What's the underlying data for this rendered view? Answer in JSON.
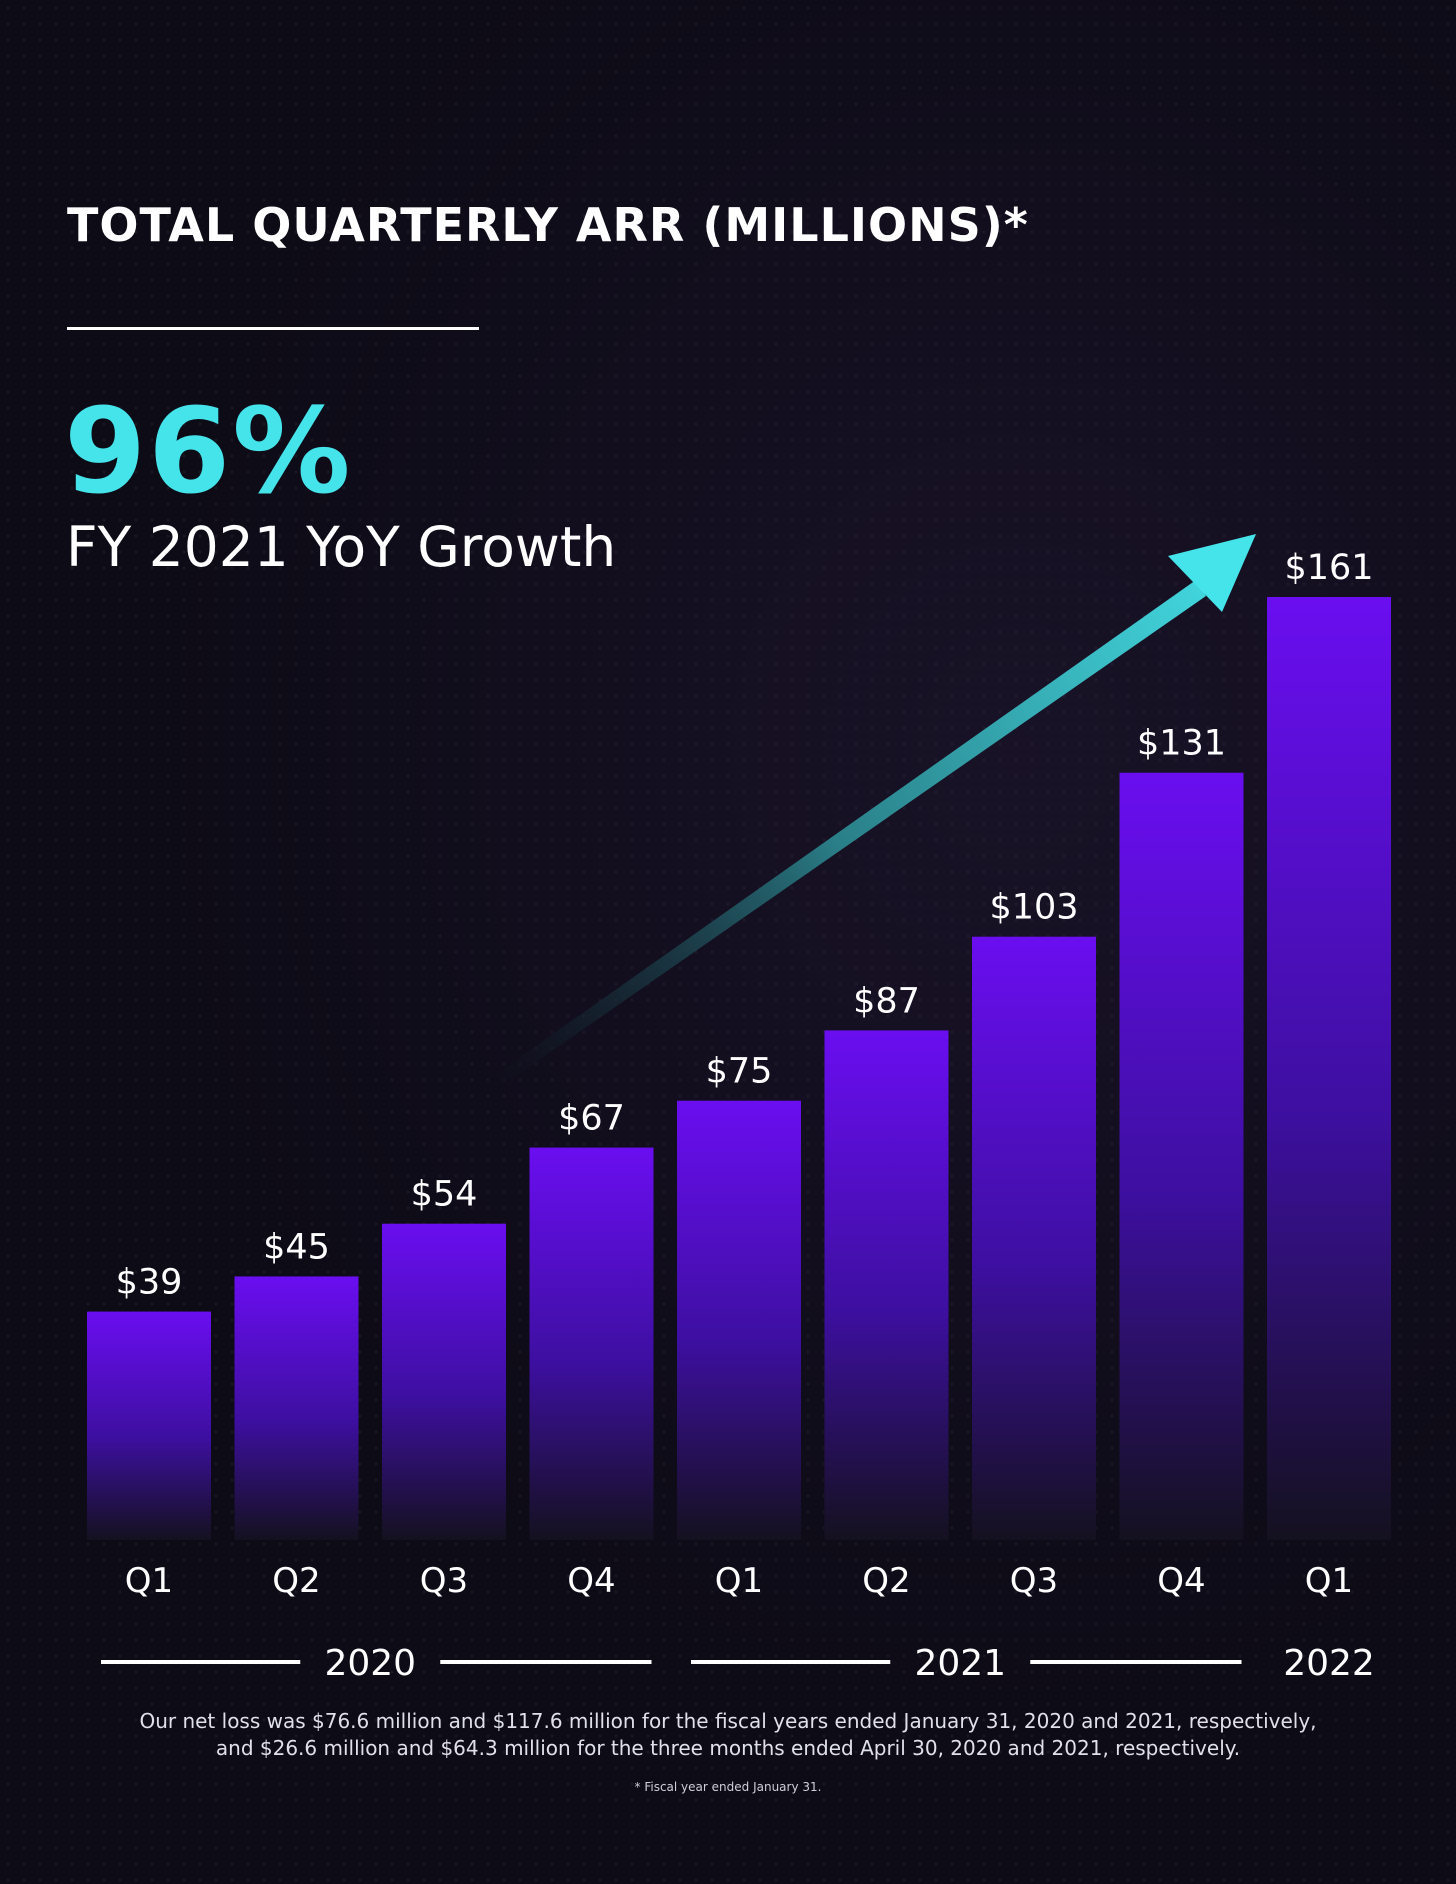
{
  "header": {
    "title": "TOTAL QUARTERLY ARR (MILLIONS)*"
  },
  "kpi": {
    "value": "96%",
    "label": "FY 2021 YoY Growth"
  },
  "colors": {
    "background": "#0d0b16",
    "bar_top": "#6a0ef0",
    "accent": "#45e3ea",
    "text": "#ffffff"
  },
  "chart_data": {
    "type": "bar",
    "title": "TOTAL QUARTERLY ARR (MILLIONS)*",
    "categories": [
      "Q1",
      "Q2",
      "Q3",
      "Q4",
      "Q1",
      "Q2",
      "Q3",
      "Q4",
      "Q1"
    ],
    "values": [
      39,
      45,
      54,
      67,
      75,
      87,
      103,
      131,
      161
    ],
    "value_labels": [
      "$39",
      "$45",
      "$54",
      "$67",
      "$75",
      "$87",
      "$103",
      "$131",
      "$161"
    ],
    "year_groups": [
      {
        "label": "2020",
        "start": 0,
        "end": 3
      },
      {
        "label": "2021",
        "start": 4,
        "end": 7
      },
      {
        "label": "2022",
        "start": 8,
        "end": 8
      }
    ],
    "ylim": [
      0,
      161
    ],
    "grid": false,
    "trend_arrow": true,
    "xlabel": "",
    "ylabel": ""
  },
  "footnotes": {
    "net_loss_line1": "Our net loss was $76.6 million and $117.6 million for the fiscal years ended January 31, 2020 and 2021, respectively,",
    "net_loss_line2": "and $26.6 million and $64.3 million for the three months ended April 30, 2020 and 2021, respectively.",
    "fiscal_year": "* Fiscal year ended January 31."
  }
}
